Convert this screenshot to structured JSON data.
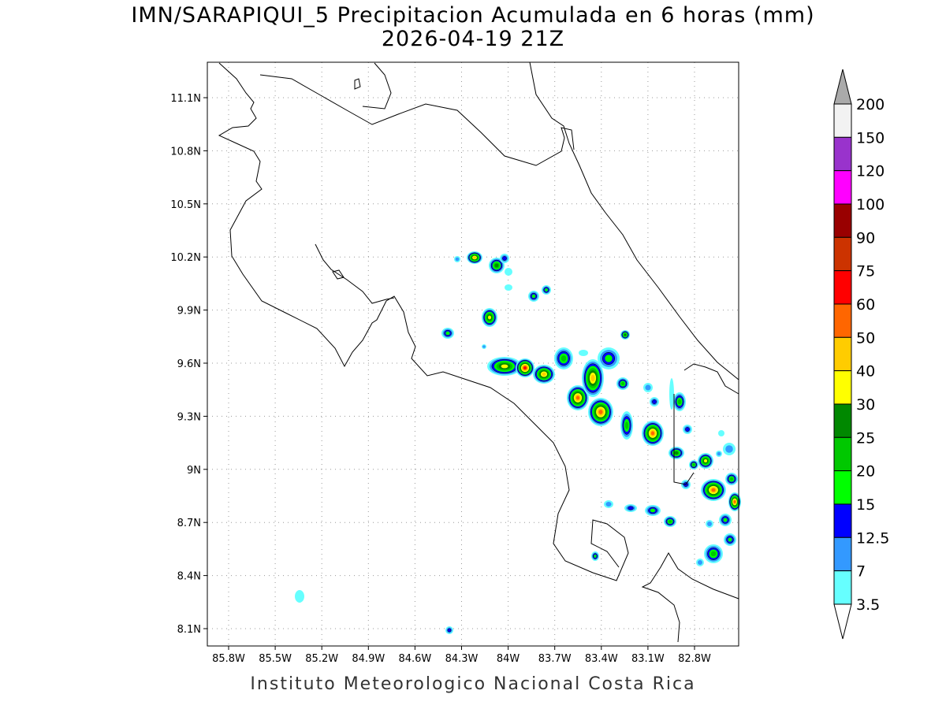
{
  "title": "IMN/SARAPIQUI_5 Precipitacion Acumulada en 6 horas (mm)",
  "subtitle": "2026-04-19 21Z",
  "footer": "Instituto Meteorologico Nacional Costa Rica",
  "map": {
    "lon_range": [
      -85.94,
      -82.52
    ],
    "lat_range": [
      8.0,
      11.3
    ],
    "lon_labels": [
      "85.8W",
      "85.5W",
      "85.2W",
      "84.9W",
      "84.6W",
      "84.3W",
      "84W",
      "83.7W",
      "83.4W",
      "83.1W",
      "82.8W"
    ],
    "lat_labels": [
      "11.1N",
      "10.8N",
      "10.5N",
      "10.2N",
      "9.9N",
      "9.6N",
      "9.3N",
      "9N",
      "8.7N",
      "8.4N",
      "8.1N"
    ]
  },
  "legend": {
    "labels": [
      "200",
      "150",
      "120",
      "100",
      "90",
      "75",
      "60",
      "50",
      "40",
      "30",
      "25",
      "20",
      "15",
      "12.5",
      "7",
      "3.5"
    ],
    "colors": [
      "#f2f2f2",
      "#9933cc",
      "#ff00ff",
      "#990000",
      "#cc3300",
      "#ff0000",
      "#ff6600",
      "#ffcc00",
      "#ffff00",
      "#008800",
      "#00c800",
      "#00ff00",
      "#0000ff",
      "#3399ff",
      "#66ffff"
    ],
    "over_color": "#aaaaaa",
    "under_color": "#ffffff"
  }
}
